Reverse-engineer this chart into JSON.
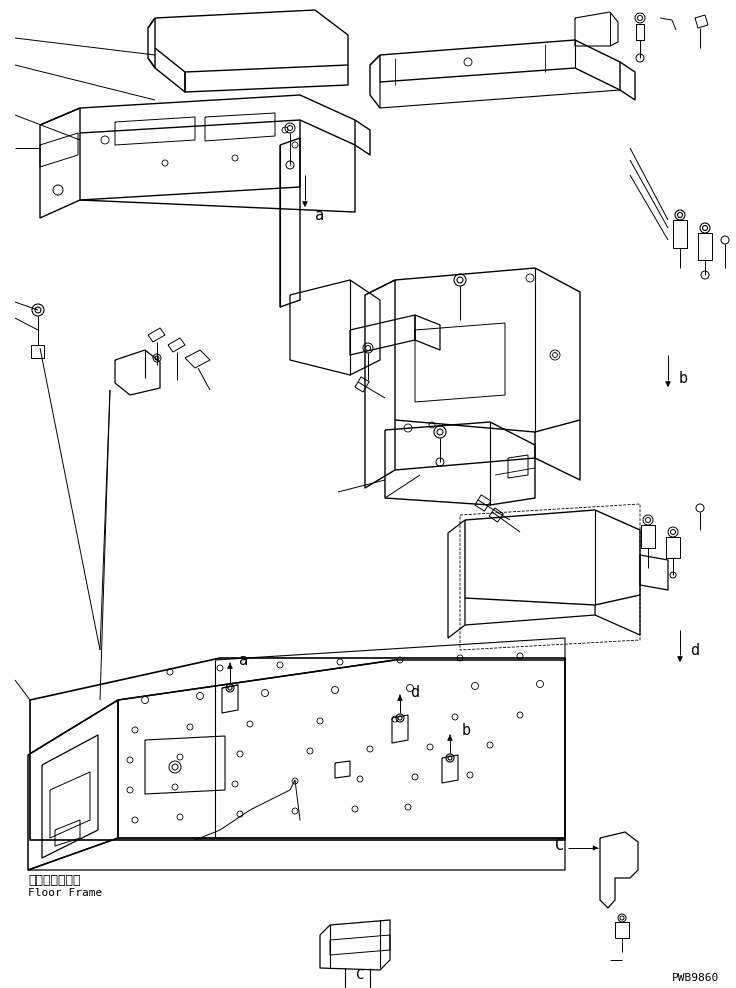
{
  "fig_width": 7.36,
  "fig_height": 9.88,
  "dpi": 100,
  "bg_color": "#ffffff",
  "line_color": "#000000",
  "floor_frame_jp": "フロアフレーム",
  "floor_frame_en": "Floor Frame",
  "part_number": "PWB9860",
  "label_a": "a",
  "label_b": "b",
  "label_c": "C",
  "label_d": "d"
}
